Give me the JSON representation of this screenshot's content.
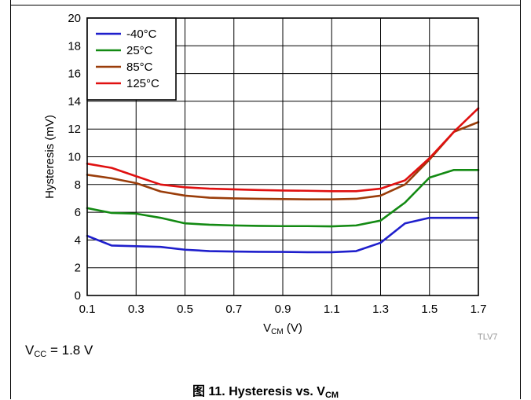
{
  "chart_data": {
    "type": "line",
    "xlabel_main": "V",
    "xlabel_sub": "CM",
    "xlabel_unit": " (V)",
    "ylabel": "Hysteresis (mV)",
    "xlim": [
      0.1,
      1.7
    ],
    "ylim": [
      0,
      20
    ],
    "xticks": [
      "0.1",
      "0.3",
      "0.5",
      "0.7",
      "0.9",
      "1.1",
      "1.3",
      "1.5",
      "1.7"
    ],
    "yticks": [
      "0",
      "2",
      "4",
      "6",
      "8",
      "10",
      "12",
      "14",
      "16",
      "18",
      "20"
    ],
    "grid": true,
    "legend_position": "top-left",
    "x": [
      0.1,
      0.2,
      0.3,
      0.4,
      0.5,
      0.6,
      0.7,
      0.8,
      0.9,
      1.0,
      1.1,
      1.2,
      1.3,
      1.4,
      1.5,
      1.6,
      1.7
    ],
    "series": [
      {
        "name": "-40°C",
        "color": "#1f1fcc",
        "values": [
          4.3,
          3.6,
          3.55,
          3.5,
          3.3,
          3.2,
          3.17,
          3.15,
          3.14,
          3.12,
          3.12,
          3.2,
          3.8,
          5.2,
          5.6,
          5.6,
          5.6
        ]
      },
      {
        "name": "25°C",
        "color": "#138a13",
        "values": [
          6.3,
          5.95,
          5.9,
          5.6,
          5.2,
          5.1,
          5.05,
          5.02,
          5.0,
          5.0,
          4.98,
          5.05,
          5.4,
          6.7,
          8.5,
          9.05,
          9.05
        ]
      },
      {
        "name": "85°C",
        "color": "#9a3d0a",
        "values": [
          8.7,
          8.45,
          8.1,
          7.5,
          7.2,
          7.05,
          7.0,
          6.97,
          6.95,
          6.93,
          6.93,
          6.97,
          7.2,
          8.0,
          9.8,
          11.8,
          12.5
        ]
      },
      {
        "name": "125°C",
        "color": "#e01010",
        "values": [
          9.5,
          9.2,
          8.6,
          8.0,
          7.8,
          7.7,
          7.65,
          7.6,
          7.57,
          7.55,
          7.52,
          7.52,
          7.7,
          8.3,
          9.9,
          11.8,
          13.5
        ]
      }
    ]
  },
  "watermark": "TLV7",
  "note": {
    "main": "V",
    "sub": "CC",
    "rest": " = 1.8 V"
  },
  "caption": {
    "main": "图 11. Hysteresis vs. V",
    "sub": "CM"
  }
}
